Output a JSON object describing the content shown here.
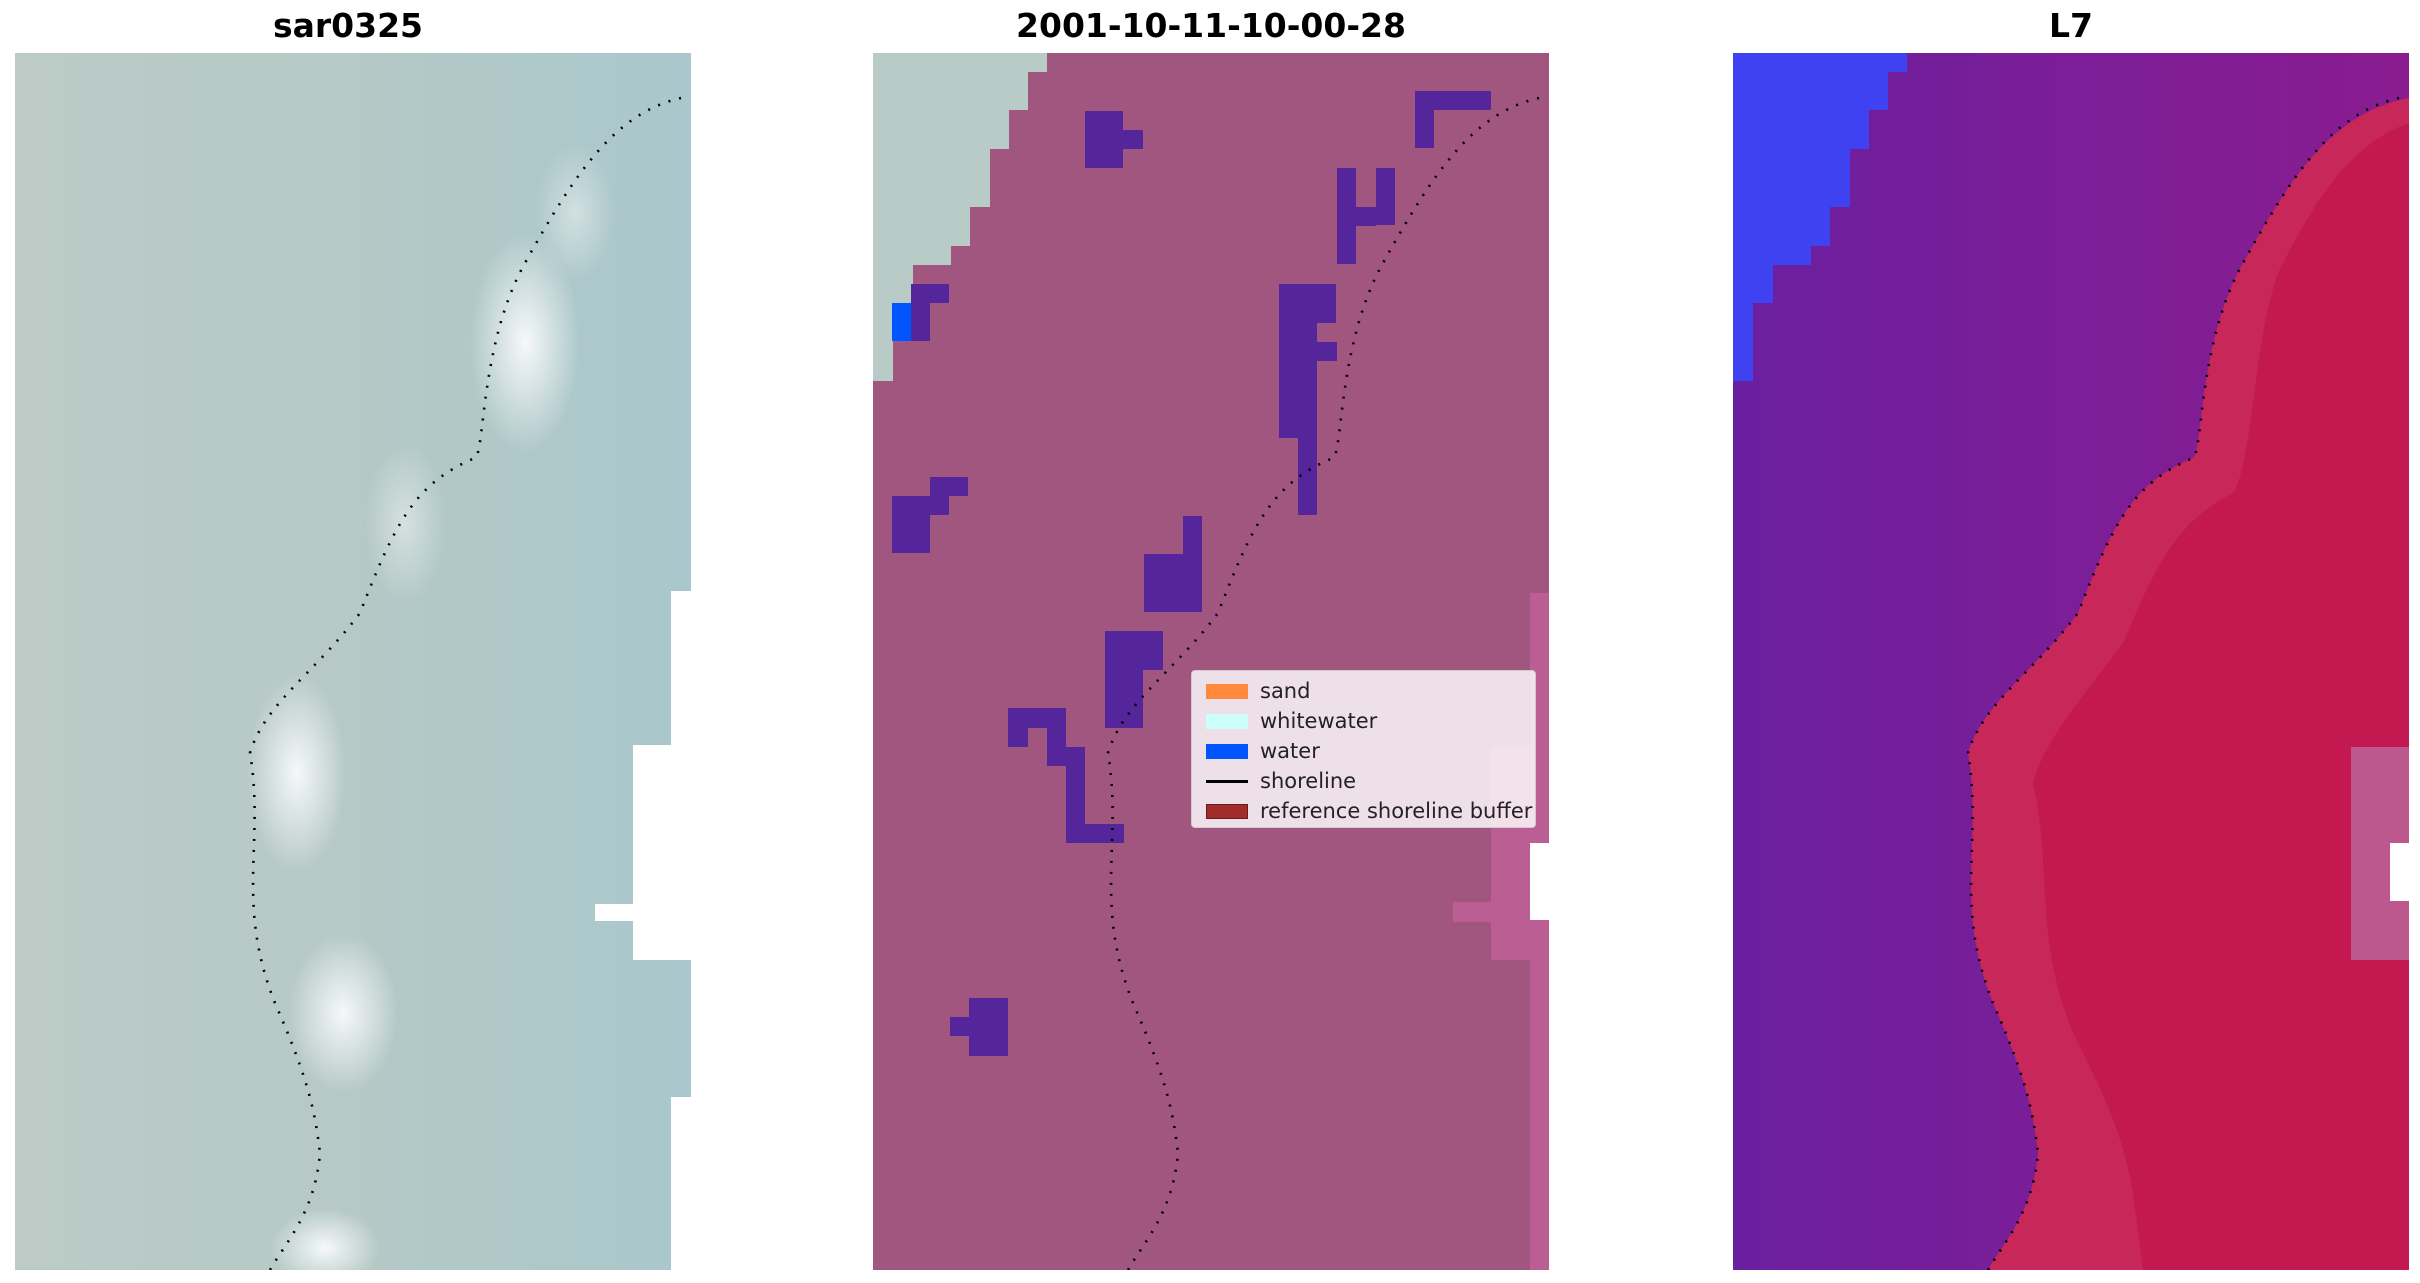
{
  "panels": [
    {
      "title": "sar0325"
    },
    {
      "title": "2001-10-11-10-00-28"
    },
    {
      "title": "L7"
    }
  ],
  "legend": {
    "items": [
      {
        "label": "sand",
        "color": "#ff8a3d",
        "kind": "patch"
      },
      {
        "label": "whitewater",
        "color": "#ccfffc",
        "kind": "patch"
      },
      {
        "label": "water",
        "color": "#0055ff",
        "kind": "patch"
      },
      {
        "label": "shoreline",
        "color": "#000000",
        "kind": "line"
      },
      {
        "label": "reference shoreline buffer",
        "color": "#a02c2c",
        "kind": "patch"
      }
    ]
  },
  "colors": {
    "rgb_land": "#b9cbc8",
    "classified_land": "#a0567f",
    "classified_water_patch": "#55259b",
    "classified_water": "#0055ff",
    "ndwi_low": "#6b1fa3",
    "ndwi_high": "#c5174c",
    "ndwi_water": "#3344ff"
  }
}
